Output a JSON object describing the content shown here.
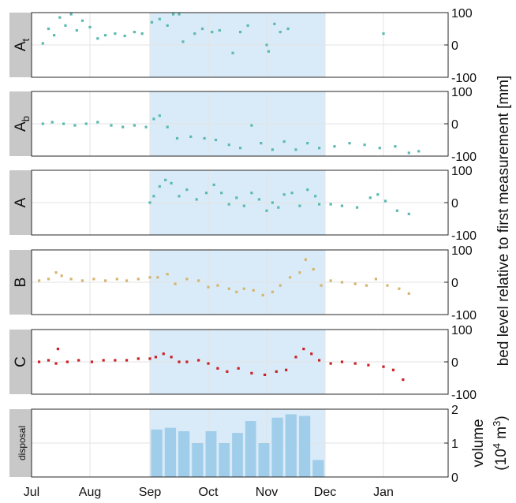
{
  "colors": {
    "shade": "#d9ebf8",
    "teal": "#5bbab0",
    "gold": "#d6b46e",
    "red": "#cc1f25",
    "bar": "#9fcdea",
    "tab": "#c8c8c8"
  },
  "chart_data": {
    "type": "scatter",
    "x_axis": {
      "tick_labels": [
        "Jul",
        "Aug",
        "Sep",
        "Oct",
        "Nov",
        "Dec",
        "Jan"
      ],
      "range_months": [
        "Jul",
        "Jan"
      ],
      "shaded_period": [
        "Sep",
        "Dec"
      ]
    },
    "ylabel": "bed level relative to first measurement [mm]",
    "panels": [
      {
        "name": "A",
        "subscript": "t",
        "color": "teal",
        "ylim": [
          -100,
          100
        ],
        "yticks": [
          "100",
          "0",
          "-100"
        ],
        "series": [
          {
            "x": "2019-07-07",
            "y": 5
          },
          {
            "x": "2019-07-10",
            "y": 50
          },
          {
            "x": "2019-07-13",
            "y": 30
          },
          {
            "x": "2019-07-16",
            "y": 85
          },
          {
            "x": "2019-07-19",
            "y": 60
          },
          {
            "x": "2019-07-22",
            "y": 95
          },
          {
            "x": "2019-07-25",
            "y": 45
          },
          {
            "x": "2019-07-28",
            "y": 75
          },
          {
            "x": "2019-08-01",
            "y": 55
          },
          {
            "x": "2019-08-05",
            "y": 20
          },
          {
            "x": "2019-08-09",
            "y": 30
          },
          {
            "x": "2019-08-14",
            "y": 35
          },
          {
            "x": "2019-08-19",
            "y": 28
          },
          {
            "x": "2019-08-24",
            "y": 40
          },
          {
            "x": "2019-08-28",
            "y": 35
          },
          {
            "x": "2019-09-02",
            "y": 70
          },
          {
            "x": "2019-09-06",
            "y": 80
          },
          {
            "x": "2019-09-10",
            "y": 60
          },
          {
            "x": "2019-09-13",
            "y": 95
          },
          {
            "x": "2019-09-16",
            "y": 95
          },
          {
            "x": "2019-09-18",
            "y": 10
          },
          {
            "x": "2019-09-24",
            "y": 35
          },
          {
            "x": "2019-09-28",
            "y": 50
          },
          {
            "x": "2019-10-03",
            "y": 40
          },
          {
            "x": "2019-10-07",
            "y": 45
          },
          {
            "x": "2019-10-14",
            "y": -25
          },
          {
            "x": "2019-10-18",
            "y": 40
          },
          {
            "x": "2019-10-22",
            "y": 60
          },
          {
            "x": "2019-11-01",
            "y": 0
          },
          {
            "x": "2019-11-02",
            "y": -20
          },
          {
            "x": "2019-11-05",
            "y": 65
          },
          {
            "x": "2019-11-08",
            "y": 40
          },
          {
            "x": "2019-11-12",
            "y": 50
          },
          {
            "x": "2020-01-01",
            "y": 35
          }
        ]
      },
      {
        "name": "A",
        "subscript": "b",
        "color": "teal",
        "ylim": [
          -100,
          100
        ],
        "yticks": [
          "100",
          "0",
          "-100"
        ],
        "series": [
          {
            "x": "2019-07-07",
            "y": 0
          },
          {
            "x": "2019-07-12",
            "y": 5
          },
          {
            "x": "2019-07-18",
            "y": 0
          },
          {
            "x": "2019-07-24",
            "y": -5
          },
          {
            "x": "2019-07-30",
            "y": 0
          },
          {
            "x": "2019-08-05",
            "y": 5
          },
          {
            "x": "2019-08-12",
            "y": -5
          },
          {
            "x": "2019-08-18",
            "y": -10
          },
          {
            "x": "2019-08-24",
            "y": -5
          },
          {
            "x": "2019-08-30",
            "y": -10
          },
          {
            "x": "2019-09-03",
            "y": 15
          },
          {
            "x": "2019-09-06",
            "y": 25
          },
          {
            "x": "2019-09-10",
            "y": -10
          },
          {
            "x": "2019-09-15",
            "y": -45
          },
          {
            "x": "2019-09-22",
            "y": -40
          },
          {
            "x": "2019-09-29",
            "y": -45
          },
          {
            "x": "2019-10-05",
            "y": -50
          },
          {
            "x": "2019-10-12",
            "y": -65
          },
          {
            "x": "2019-10-18",
            "y": -75
          },
          {
            "x": "2019-10-24",
            "y": -5
          },
          {
            "x": "2019-10-29",
            "y": -60
          },
          {
            "x": "2019-11-04",
            "y": -80
          },
          {
            "x": "2019-11-10",
            "y": -55
          },
          {
            "x": "2019-11-16",
            "y": -80
          },
          {
            "x": "2019-11-22",
            "y": -60
          },
          {
            "x": "2019-11-28",
            "y": -75
          },
          {
            "x": "2019-12-06",
            "y": -70
          },
          {
            "x": "2019-12-14",
            "y": -60
          },
          {
            "x": "2019-12-22",
            "y": -65
          },
          {
            "x": "2019-12-30",
            "y": -75
          },
          {
            "x": "2020-01-07",
            "y": -70
          },
          {
            "x": "2020-01-14",
            "y": -90
          },
          {
            "x": "2020-01-19",
            "y": -85
          }
        ]
      },
      {
        "name": "A",
        "subscript": "",
        "color": "teal",
        "ylim": [
          -100,
          100
        ],
        "yticks": [
          "100",
          "0",
          "-100"
        ],
        "series": [
          {
            "x": "2019-09-01",
            "y": 0
          },
          {
            "x": "2019-09-03",
            "y": 20
          },
          {
            "x": "2019-09-06",
            "y": 50
          },
          {
            "x": "2019-09-09",
            "y": 70
          },
          {
            "x": "2019-09-12",
            "y": 60
          },
          {
            "x": "2019-09-16",
            "y": 20
          },
          {
            "x": "2019-09-20",
            "y": 40
          },
          {
            "x": "2019-09-25",
            "y": 10
          },
          {
            "x": "2019-09-30",
            "y": 30
          },
          {
            "x": "2019-10-04",
            "y": 55
          },
          {
            "x": "2019-10-08",
            "y": 30
          },
          {
            "x": "2019-10-12",
            "y": -5
          },
          {
            "x": "2019-10-16",
            "y": 15
          },
          {
            "x": "2019-10-20",
            "y": -10
          },
          {
            "x": "2019-10-24",
            "y": 30
          },
          {
            "x": "2019-10-28",
            "y": 10
          },
          {
            "x": "2019-11-01",
            "y": -25
          },
          {
            "x": "2019-11-04",
            "y": 0
          },
          {
            "x": "2019-11-07",
            "y": -15
          },
          {
            "x": "2019-11-10",
            "y": 25
          },
          {
            "x": "2019-11-14",
            "y": 30
          },
          {
            "x": "2019-11-18",
            "y": -10
          },
          {
            "x": "2019-11-22",
            "y": 40
          },
          {
            "x": "2019-11-26",
            "y": 20
          },
          {
            "x": "2019-11-28",
            "y": -5
          },
          {
            "x": "2019-12-04",
            "y": -5
          },
          {
            "x": "2019-12-10",
            "y": -10
          },
          {
            "x": "2019-12-18",
            "y": -15
          },
          {
            "x": "2019-12-25",
            "y": 15
          },
          {
            "x": "2019-12-29",
            "y": 25
          },
          {
            "x": "2020-01-02",
            "y": 5
          },
          {
            "x": "2020-01-08",
            "y": -25
          },
          {
            "x": "2020-01-14",
            "y": -35
          }
        ]
      },
      {
        "name": "B",
        "subscript": "",
        "color": "gold",
        "ylim": [
          -100,
          100
        ],
        "yticks": [
          "100",
          "0",
          "-100"
        ],
        "series": [
          {
            "x": "2019-07-05",
            "y": 5
          },
          {
            "x": "2019-07-10",
            "y": 10
          },
          {
            "x": "2019-07-14",
            "y": 30
          },
          {
            "x": "2019-07-17",
            "y": 20
          },
          {
            "x": "2019-07-22",
            "y": 10
          },
          {
            "x": "2019-07-28",
            "y": 5
          },
          {
            "x": "2019-08-03",
            "y": 10
          },
          {
            "x": "2019-08-09",
            "y": 5
          },
          {
            "x": "2019-08-15",
            "y": 10
          },
          {
            "x": "2019-08-20",
            "y": 5
          },
          {
            "x": "2019-08-26",
            "y": 10
          },
          {
            "x": "2019-09-01",
            "y": 15
          },
          {
            "x": "2019-09-05",
            "y": 15
          },
          {
            "x": "2019-09-10",
            "y": 25
          },
          {
            "x": "2019-09-14",
            "y": -5
          },
          {
            "x": "2019-09-20",
            "y": 10
          },
          {
            "x": "2019-09-26",
            "y": 5
          },
          {
            "x": "2019-10-01",
            "y": -15
          },
          {
            "x": "2019-10-06",
            "y": -10
          },
          {
            "x": "2019-10-12",
            "y": -20
          },
          {
            "x": "2019-10-16",
            "y": -30
          },
          {
            "x": "2019-10-20",
            "y": -20
          },
          {
            "x": "2019-10-25",
            "y": -25
          },
          {
            "x": "2019-10-30",
            "y": -40
          },
          {
            "x": "2019-11-04",
            "y": -30
          },
          {
            "x": "2019-11-08",
            "y": -10
          },
          {
            "x": "2019-11-13",
            "y": 15
          },
          {
            "x": "2019-11-18",
            "y": 30
          },
          {
            "x": "2019-11-21",
            "y": 70
          },
          {
            "x": "2019-11-25",
            "y": 40
          },
          {
            "x": "2019-11-29",
            "y": -10
          },
          {
            "x": "2019-12-04",
            "y": 5
          },
          {
            "x": "2019-12-10",
            "y": 0
          },
          {
            "x": "2019-12-17",
            "y": -5
          },
          {
            "x": "2019-12-23",
            "y": -10
          },
          {
            "x": "2019-12-28",
            "y": 10
          },
          {
            "x": "2020-01-03",
            "y": -10
          },
          {
            "x": "2020-01-09",
            "y": -20
          },
          {
            "x": "2020-01-14",
            "y": -35
          }
        ]
      },
      {
        "name": "C",
        "subscript": "",
        "color": "red",
        "ylim": [
          -100,
          100
        ],
        "yticks": [
          "100",
          "0",
          "-100"
        ],
        "series": [
          {
            "x": "2019-07-05",
            "y": 0
          },
          {
            "x": "2019-07-10",
            "y": 5
          },
          {
            "x": "2019-07-14",
            "y": -5
          },
          {
            "x": "2019-07-15",
            "y": 40
          },
          {
            "x": "2019-07-20",
            "y": 0
          },
          {
            "x": "2019-07-26",
            "y": 5
          },
          {
            "x": "2019-08-02",
            "y": 0
          },
          {
            "x": "2019-08-08",
            "y": 5
          },
          {
            "x": "2019-08-14",
            "y": 5
          },
          {
            "x": "2019-08-20",
            "y": 5
          },
          {
            "x": "2019-08-26",
            "y": 10
          },
          {
            "x": "2019-09-01",
            "y": 10
          },
          {
            "x": "2019-09-04",
            "y": 15
          },
          {
            "x": "2019-09-08",
            "y": 25
          },
          {
            "x": "2019-09-12",
            "y": 15
          },
          {
            "x": "2019-09-16",
            "y": 0
          },
          {
            "x": "2019-09-20",
            "y": 0
          },
          {
            "x": "2019-09-26",
            "y": 5
          },
          {
            "x": "2019-10-01",
            "y": -5
          },
          {
            "x": "2019-10-06",
            "y": -20
          },
          {
            "x": "2019-10-11",
            "y": -30
          },
          {
            "x": "2019-10-17",
            "y": -20
          },
          {
            "x": "2019-10-24",
            "y": -35
          },
          {
            "x": "2019-10-31",
            "y": -40
          },
          {
            "x": "2019-11-06",
            "y": -30
          },
          {
            "x": "2019-11-11",
            "y": -25
          },
          {
            "x": "2019-11-16",
            "y": 15
          },
          {
            "x": "2019-11-20",
            "y": 40
          },
          {
            "x": "2019-11-24",
            "y": 25
          },
          {
            "x": "2019-11-28",
            "y": 5
          },
          {
            "x": "2019-12-04",
            "y": -5
          },
          {
            "x": "2019-12-10",
            "y": 0
          },
          {
            "x": "2019-12-17",
            "y": -5
          },
          {
            "x": "2019-12-24",
            "y": -10
          },
          {
            "x": "2020-01-01",
            "y": -15
          },
          {
            "x": "2020-01-06",
            "y": -25
          },
          {
            "x": "2020-01-11",
            "y": -55
          }
        ]
      },
      {
        "name": "disposal",
        "subscript": "",
        "type": "bar",
        "color": "bar",
        "ylim": [
          0,
          2
        ],
        "yticks": [
          "2",
          "1",
          "0"
        ],
        "ylabel": "volume",
        "ylabel_unit": "(10",
        "ylabel_unit_exp": "4",
        "ylabel_unit_rest": " m",
        "ylabel_unit_exp2": "3",
        "ylabel_unit_close": ")",
        "bars": [
          {
            "x": "2019-09-01",
            "x_end": "2019-09-08",
            "y": 1.4
          },
          {
            "x": "2019-09-08",
            "x_end": "2019-09-15",
            "y": 1.45
          },
          {
            "x": "2019-09-15",
            "x_end": "2019-09-22",
            "y": 1.35
          },
          {
            "x": "2019-09-22",
            "x_end": "2019-09-29",
            "y": 1.0
          },
          {
            "x": "2019-09-29",
            "x_end": "2019-10-06",
            "y": 1.35
          },
          {
            "x": "2019-10-06",
            "x_end": "2019-10-13",
            "y": 1.0
          },
          {
            "x": "2019-10-13",
            "x_end": "2019-10-20",
            "y": 1.3
          },
          {
            "x": "2019-10-20",
            "x_end": "2019-10-27",
            "y": 1.65
          },
          {
            "x": "2019-10-27",
            "x_end": "2019-11-03",
            "y": 1.0
          },
          {
            "x": "2019-11-03",
            "x_end": "2019-11-10",
            "y": 1.75
          },
          {
            "x": "2019-11-10",
            "x_end": "2019-11-17",
            "y": 1.85
          },
          {
            "x": "2019-11-17",
            "x_end": "2019-11-24",
            "y": 1.8
          },
          {
            "x": "2019-11-24",
            "x_end": "2019-12-01",
            "y": 0.5
          }
        ]
      }
    ]
  }
}
